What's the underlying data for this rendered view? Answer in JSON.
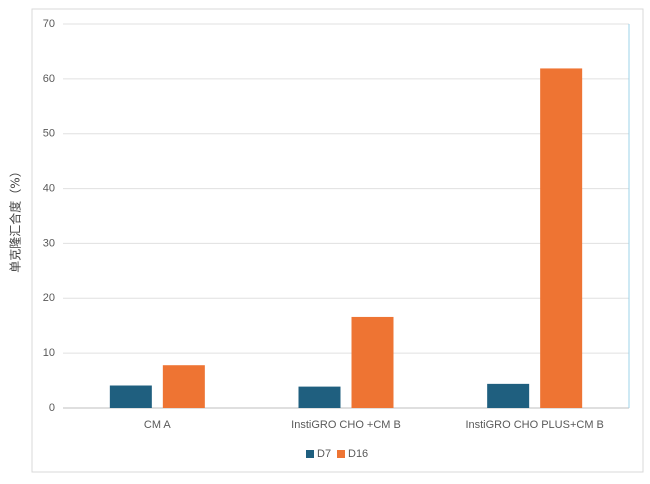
{
  "chart_data": {
    "type": "bar",
    "title": "",
    "xlabel": "",
    "ylabel": "单克隆汇合度（%）",
    "ylim": [
      0,
      70
    ],
    "yticks": [
      0,
      10,
      20,
      30,
      40,
      50,
      60,
      70
    ],
    "grid": true,
    "legend_position": "bottom",
    "categories": [
      "CM A",
      "InstiGRO CHO +CM B",
      "InstiGRO CHO PLUS+CM B"
    ],
    "series": [
      {
        "name": "D7",
        "color": "#1f5f7f",
        "values": [
          4.1,
          3.9,
          4.4
        ]
      },
      {
        "name": "D16",
        "color": "#ee7433",
        "values": [
          7.8,
          16.6,
          61.9
        ]
      }
    ]
  }
}
